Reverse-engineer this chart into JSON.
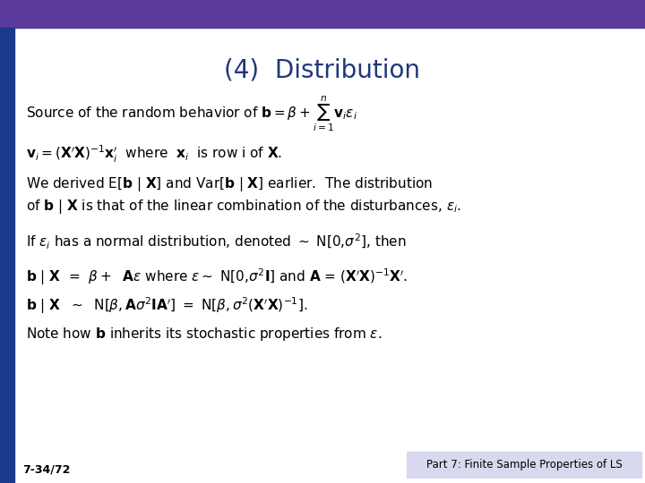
{
  "title": "(4)  Distribution",
  "title_color": "#1F3878",
  "title_fontsize": 20,
  "bg_color": "#FFFFFF",
  "top_bar_color": "#5B3A9B",
  "left_bar_color": "#1A3A8C",
  "bottom_left_text": "7-34/72",
  "bottom_right_text": "Part 7: Finite Sample Properties of LS",
  "bottom_right_bg": "#D8D8EE",
  "footer_text_color": "#000000",
  "footer_fontsize": 8.5,
  "body_fontsize": 11,
  "body_color": "#000000",
  "top_bar_height": 0.057,
  "left_bar_width": 0.022
}
